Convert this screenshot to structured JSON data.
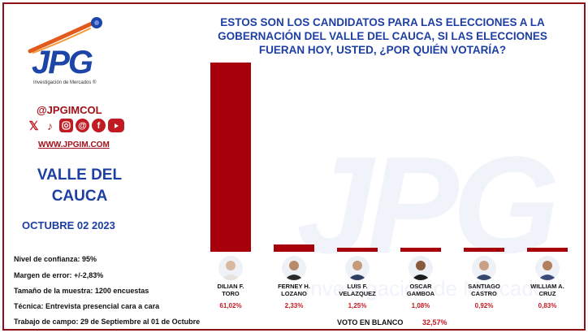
{
  "header": {
    "title_lines": [
      "ESTOS SON LOS CANDIDATOS PARA LAS ELECCIONES A LA",
      "GOBERNACIÓN DEL VALLE DEL CAUCA, SI LAS ELECCIONES",
      "FUERAN HOY, USTED, ¿POR QUIÉN VOTARÍA?"
    ]
  },
  "brand": {
    "logo_text": "JPG",
    "logo_subtitle": "Investigación de Mercados ®",
    "handle": "@JPGIMCOL",
    "website": "WWW.JPGIM.COM",
    "social_icons": [
      "x-icon",
      "tiktok-icon",
      "instagram-icon",
      "threads-icon",
      "facebook-icon",
      "youtube-icon"
    ],
    "accent_color": "#a8000b",
    "blue_color": "#1d3fa3"
  },
  "region": {
    "line1": "VALLE DEL",
    "line2": "CAUCA"
  },
  "date": "OCTUBRE 02 2023",
  "methodology": {
    "confidence": "Nivel de confianza: 95%",
    "margin": "Margen de error: +/-2,83%",
    "sample": "Tamaño de la muestra: 1200 encuestas",
    "technique": "Técnica: Entrevista presencial cara a cara",
    "fieldwork": "Trabajo de campo: 29 de Septiembre al 01 de Octubre"
  },
  "watermark": {
    "letters": "JPG",
    "subtitle": "Investigación de Mercados"
  },
  "chart_data": {
    "type": "bar",
    "categories": [
      "DILIAN F. TORO",
      "FERNEY H. LOZANO",
      "LUIS F. VELAZQUEZ",
      "OSCAR GAMBOA",
      "SANTIAGO CASTRO",
      "WILLIAM A. CRUZ"
    ],
    "name_lines": [
      [
        "DILIAN F.",
        "TORO"
      ],
      [
        "FERNEY H.",
        "LOZANO"
      ],
      [
        "LUIS F.",
        "VELAZQUEZ"
      ],
      [
        "OSCAR",
        "GAMBOA"
      ],
      [
        "SANTIAGO",
        "CASTRO"
      ],
      [
        "WILLIAM A.",
        "CRUZ"
      ]
    ],
    "values": [
      61.02,
      2.33,
      1.25,
      1.08,
      0.92,
      0.83
    ],
    "value_labels": [
      "61,02%",
      "2,33%",
      "1,25%",
      "1,08%",
      "0,92%",
      "0,83%"
    ],
    "ylim": [
      0,
      61.02
    ],
    "grid": false,
    "bar_color": "#a8000b",
    "extra": {
      "label": "VOTO EN BLANCO",
      "value": 32.57,
      "value_label": "32,57%"
    }
  }
}
